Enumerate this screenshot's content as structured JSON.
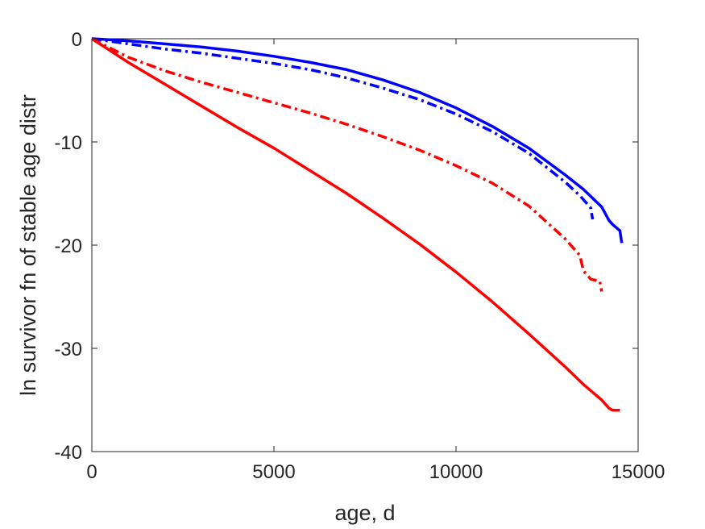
{
  "chart_data": {
    "type": "line",
    "title": "",
    "xlabel": "age, d",
    "ylabel": "ln survivor fn of stable age distr",
    "xlim": [
      0,
      15000
    ],
    "ylim": [
      -40,
      0
    ],
    "xticks": [
      0,
      5000,
      10000,
      15000
    ],
    "xtick_labels": [
      "0",
      "5000",
      "10000",
      "15000"
    ],
    "yticks": [
      -40,
      -30,
      -20,
      -10,
      0
    ],
    "ytick_labels": [
      "-40",
      "-30",
      "-20",
      "-10",
      "0"
    ],
    "grid": false,
    "legend": "none",
    "series": [
      {
        "color": "#0000ff",
        "style": "solid",
        "x": [
          0,
          1000,
          2000,
          3000,
          4000,
          5000,
          6000,
          7000,
          8000,
          9000,
          10000,
          11000,
          12000,
          13000,
          13500,
          14000,
          14200,
          14300,
          14500,
          14550
        ],
        "y": [
          0,
          -0.2,
          -0.5,
          -0.8,
          -1.2,
          -1.7,
          -2.3,
          -3.0,
          -4.0,
          -5.2,
          -6.7,
          -8.5,
          -10.6,
          -13.2,
          -14.6,
          -16.3,
          -17.6,
          -18.0,
          -18.6,
          -19.8
        ]
      },
      {
        "color": "#0000ff",
        "style": "dashdot",
        "x": [
          0,
          1000,
          2000,
          3000,
          4000,
          5000,
          6000,
          7000,
          8000,
          9000,
          10000,
          11000,
          12000,
          13000,
          13400,
          13700,
          13750
        ],
        "y": [
          0,
          -0.5,
          -1.0,
          -1.4,
          -1.9,
          -2.4,
          -3.0,
          -3.8,
          -4.8,
          -5.9,
          -7.3,
          -9.0,
          -11.1,
          -13.9,
          -15.2,
          -16.4,
          -17.5
        ]
      },
      {
        "color": "#ff0000",
        "style": "dashdot",
        "x": [
          0,
          1000,
          2000,
          3000,
          4000,
          5000,
          6000,
          7000,
          8000,
          9000,
          10000,
          11000,
          12000,
          13000,
          13400,
          13500,
          13700,
          13950,
          14000
        ],
        "y": [
          0,
          -1.8,
          -3.1,
          -4.2,
          -5.2,
          -6.2,
          -7.2,
          -8.3,
          -9.5,
          -10.8,
          -12.3,
          -14.0,
          -16.2,
          -19.4,
          -21.0,
          -22.5,
          -23.3,
          -23.5,
          -24.5
        ]
      },
      {
        "color": "#ff0000",
        "style": "solid",
        "x": [
          0,
          1000,
          2000,
          3000,
          4000,
          5000,
          6000,
          7000,
          8000,
          9000,
          10000,
          11000,
          12000,
          13000,
          13500,
          14000,
          14200,
          14300,
          14500
        ],
        "y": [
          0,
          -2.3,
          -4.4,
          -6.5,
          -8.6,
          -10.6,
          -12.8,
          -15.0,
          -17.4,
          -19.9,
          -22.6,
          -25.5,
          -28.6,
          -31.8,
          -33.5,
          -35.0,
          -35.8,
          -36.0,
          -36.0
        ]
      }
    ]
  }
}
